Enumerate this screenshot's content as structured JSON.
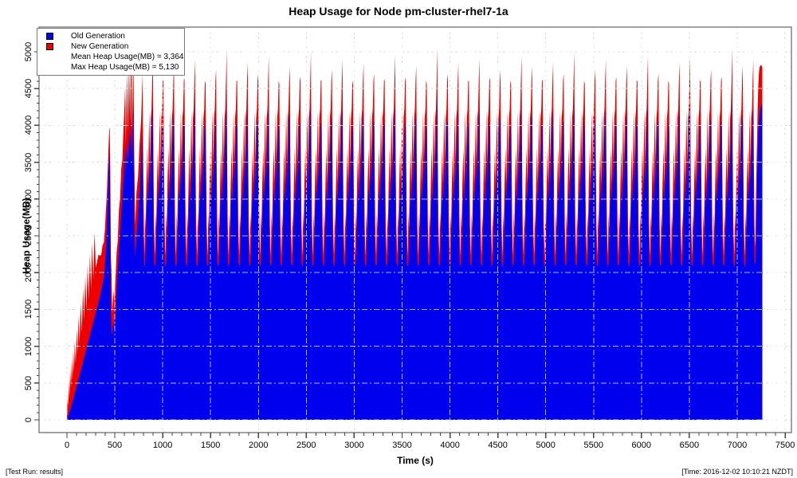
{
  "title": "Heap Usage for Node pm-cluster-rhel7-1a",
  "footer": {
    "left": "[Test Run: results]",
    "right": "[Time: 2016-12-02 10:10:21 NZDT]"
  },
  "legend": {
    "items": [
      {
        "label": "Old Generation",
        "color": "#0000EE"
      },
      {
        "label": "New Generation",
        "color": "#EE0000"
      },
      {
        "label": "Mean Heap Usage(MB) = 3,364"
      },
      {
        "label": "Max Heap Usage(MB) = 5,130"
      }
    ]
  },
  "chart_data": {
    "type": "area",
    "stacked": true,
    "title": "Heap Usage for Node pm-cluster-rhel7-1a",
    "xlabel": "Time (s)",
    "ylabel": "Heap Usage(MB)",
    "xlim": [
      -291,
      7566
    ],
    "ylim": [
      -173,
      5335
    ],
    "x_ticks": [
      0,
      500,
      1000,
      1500,
      2000,
      2500,
      3000,
      3500,
      4000,
      4500,
      5000,
      5500,
      6000,
      6500,
      7000,
      7500
    ],
    "x_minor_step": 100,
    "y_ticks": [
      0,
      500,
      1000,
      1500,
      2000,
      2500,
      3000,
      3500,
      4000,
      4500,
      5000
    ],
    "y_minor_step": 100,
    "grid": true,
    "legend_position": "top-left",
    "colors": {
      "old_generation": "#0000EE",
      "new_generation": "#EE0000",
      "grid_under": "#d8d8d8",
      "grid_over": "rgba(255,255,255,0.7)",
      "axis": "#444444"
    },
    "stats": {
      "mean_heap_mb": 3364,
      "max_heap_mb": 5130
    },
    "series_names": [
      "Old Generation",
      "New Generation"
    ],
    "points_ramp": [
      [
        0,
        20,
        30
      ],
      [
        8,
        40,
        260
      ],
      [
        14,
        60,
        130
      ],
      [
        20,
        80,
        430
      ],
      [
        26,
        105,
        190
      ],
      [
        34,
        135,
        540
      ],
      [
        42,
        170,
        270
      ],
      [
        50,
        205,
        620
      ],
      [
        58,
        240,
        300
      ],
      [
        66,
        280,
        660
      ],
      [
        74,
        320,
        330
      ],
      [
        82,
        360,
        710
      ],
      [
        92,
        405,
        360
      ],
      [
        102,
        455,
        780
      ],
      [
        112,
        505,
        390
      ],
      [
        122,
        555,
        860
      ],
      [
        132,
        605,
        440
      ],
      [
        144,
        665,
        920
      ],
      [
        156,
        725,
        470
      ],
      [
        168,
        785,
        1000
      ],
      [
        180,
        845,
        510
      ],
      [
        192,
        905,
        1040
      ],
      [
        204,
        965,
        530
      ],
      [
        216,
        1025,
        1080
      ],
      [
        228,
        1085,
        550
      ],
      [
        240,
        1145,
        1110
      ],
      [
        252,
        1205,
        570
      ],
      [
        264,
        1265,
        1140
      ],
      [
        276,
        1325,
        590
      ],
      [
        288,
        1385,
        1160
      ],
      [
        302,
        1455,
        610
      ],
      [
        316,
        1525,
        630
      ],
      [
        330,
        1595,
        650
      ],
      [
        344,
        1670,
        560
      ],
      [
        358,
        1750,
        490
      ],
      [
        372,
        1840,
        530
      ],
      [
        386,
        1950,
        460
      ],
      [
        398,
        2120,
        490
      ],
      [
        408,
        2350,
        520
      ],
      [
        418,
        2650,
        450
      ],
      [
        427,
        3000,
        420
      ],
      [
        435,
        3330,
        390
      ],
      [
        442,
        3560,
        380
      ],
      [
        447,
        3620,
        360
      ],
      [
        453,
        2700,
        650
      ],
      [
        459,
        1700,
        500
      ],
      [
        466,
        1150,
        850
      ],
      [
        473,
        1180,
        260
      ],
      [
        484,
        1350,
        420
      ],
      [
        495,
        1230,
        350
      ],
      [
        507,
        1480,
        430
      ],
      [
        519,
        1760,
        520
      ],
      [
        531,
        2030,
        400
      ],
      [
        543,
        2290,
        560
      ],
      [
        555,
        2540,
        470
      ],
      [
        567,
        2790,
        620
      ],
      [
        579,
        3040,
        490
      ],
      [
        591,
        3290,
        660
      ],
      [
        601,
        3540,
        720
      ],
      [
        609,
        3700,
        850
      ],
      [
        615,
        3300,
        450
      ],
      [
        627,
        3800,
        930
      ],
      [
        637,
        3500,
        420
      ],
      [
        649,
        3950,
        940
      ],
      [
        659,
        3650,
        390
      ],
      [
        671,
        4100,
        950
      ],
      [
        681,
        3500,
        420
      ],
      [
        693,
        4300,
        830
      ],
      [
        703,
        2700,
        900
      ],
      [
        713,
        2200,
        450
      ],
      [
        727,
        2500,
        600
      ],
      [
        743,
        2800,
        510
      ],
      [
        759,
        3100,
        650
      ],
      [
        775,
        3500,
        560
      ],
      [
        790,
        3900,
        800
      ],
      [
        798,
        2500,
        800
      ],
      [
        806,
        2150,
        350
      ]
    ],
    "steady_cycles": {
      "start": 810,
      "period": 110,
      "profile_note": "each entry is [dt_seconds, old_gen_mb (-1 = peak_total minus new), new_gen_mb]",
      "profile": [
        [
          0,
          2080,
          150
        ],
        [
          6,
          2120,
          700
        ],
        [
          12,
          2350,
          250
        ],
        [
          20,
          2750,
          450
        ],
        [
          30,
          3150,
          550
        ],
        [
          38,
          2950,
          250
        ],
        [
          50,
          3500,
          700
        ],
        [
          58,
          3200,
          300
        ],
        [
          66,
          3600,
          500
        ],
        [
          74,
          3800,
          420
        ],
        [
          81,
          4050,
          560
        ],
        [
          88,
          -1,
          650
        ],
        [
          93,
          2700,
          900
        ],
        [
          100,
          2150,
          500
        ],
        [
          106,
          2100,
          250
        ]
      ],
      "peak_totals": [
        4950,
        4600,
        4820,
        4640,
        4900,
        4560,
        4760,
        5040,
        4600,
        4860,
        4700,
        4950,
        4560,
        4800,
        4660,
        5000,
        4610,
        4760,
        4900,
        4550,
        4850,
        4700,
        4620,
        4960,
        4650,
        4810,
        4560,
        5050,
        4700,
        4860,
        4600,
        4910,
        4650,
        4760,
        4560,
        4950,
        4800,
        4610,
        4860,
        4700,
        5000,
        4560,
        4760,
        4900,
        4650,
        4810,
        4600,
        4950,
        4700,
        4560,
        4860,
        4910,
        4600,
        4760,
        4660,
        5050,
        4810,
        4900
      ]
    },
    "points_final": [
      [
        7190,
        2150,
        300
      ],
      [
        7196,
        2500,
        520
      ],
      [
        7202,
        2900,
        600
      ],
      [
        7208,
        3300,
        560
      ],
      [
        7214,
        3650,
        600
      ],
      [
        7220,
        3900,
        640
      ],
      [
        7227,
        4060,
        660
      ],
      [
        7234,
        4150,
        640
      ],
      [
        7241,
        4210,
        600
      ],
      [
        7248,
        4260,
        560
      ],
      [
        7255,
        4290,
        520
      ],
      [
        7262,
        4300,
        490
      ]
    ]
  }
}
